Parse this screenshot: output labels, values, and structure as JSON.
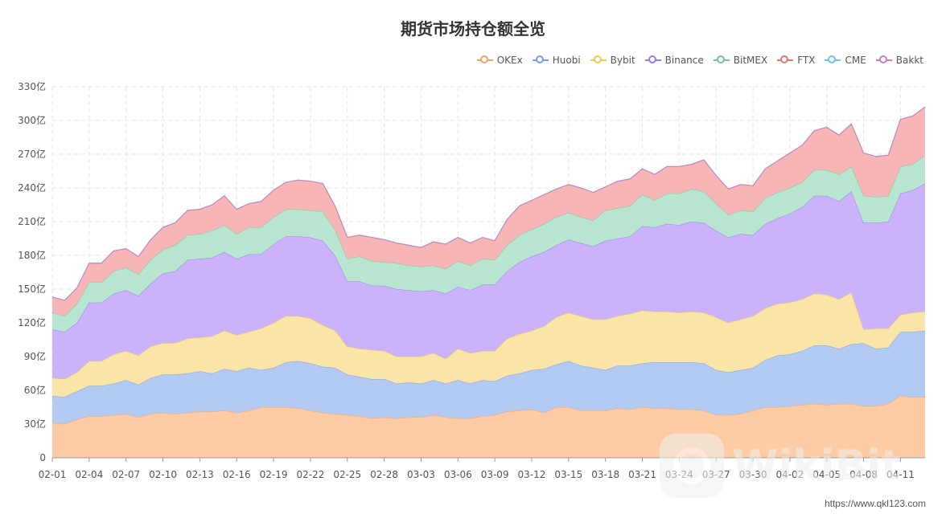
{
  "title": "期货市场持仓额全览",
  "source": "https://www.qkl123.com",
  "watermark": "WikiBit",
  "chart_data": {
    "type": "area",
    "stacked": true,
    "title": "期货市场持仓额全览",
    "y_unit": "亿",
    "ylim": [
      0,
      330
    ],
    "yticks": [
      "0",
      "30亿",
      "60亿",
      "90亿",
      "120亿",
      "150亿",
      "180亿",
      "210亿",
      "240亿",
      "270亿",
      "300亿",
      "330亿"
    ],
    "grid": true,
    "legend_position": "top-right",
    "x_tick_labels": [
      "02-01",
      "02-04",
      "02-07",
      "02-10",
      "02-13",
      "02-16",
      "02-19",
      "02-22",
      "02-25",
      "02-28",
      "03-03",
      "03-06",
      "03-09",
      "03-12",
      "03-15",
      "03-18",
      "03-21",
      "03-24",
      "03-27",
      "03-30",
      "04-02",
      "04-05",
      "04-08",
      "04-11"
    ],
    "series": [
      {
        "name": "OKEx",
        "color": "#f4a261",
        "fill": "#fdcba4",
        "values": [
          31,
          30,
          34,
          37,
          37,
          38,
          39,
          36,
          39,
          40,
          39,
          40,
          41,
          41,
          42,
          40,
          42,
          45,
          45,
          45,
          44,
          42,
          40,
          39,
          38,
          37,
          35,
          36,
          35,
          36,
          36,
          38,
          36,
          35,
          35,
          37,
          38,
          41,
          42,
          43,
          40,
          45,
          45,
          42,
          42,
          42,
          44,
          43,
          45,
          44,
          44,
          43,
          43,
          42,
          38,
          38,
          39,
          42,
          45,
          45,
          46,
          47,
          48,
          47,
          48,
          48,
          46,
          46,
          48,
          55,
          54,
          54
        ]
      },
      {
        "name": "Huobi",
        "color": "#7a9be6",
        "fill": "#b3cbf2",
        "values": [
          24,
          24,
          25,
          27,
          27,
          28,
          30,
          29,
          32,
          34,
          35,
          35,
          36,
          34,
          37,
          37,
          38,
          33,
          35,
          40,
          42,
          42,
          41,
          41,
          36,
          35,
          35,
          34,
          31,
          31,
          30,
          31,
          30,
          34,
          31,
          32,
          30,
          32,
          33,
          35,
          39,
          38,
          41,
          40,
          38,
          36,
          38,
          39,
          39,
          41,
          41,
          42,
          42,
          42,
          40,
          38,
          39,
          38,
          42,
          46,
          46,
          48,
          52,
          53,
          49,
          53,
          56,
          51,
          50,
          57,
          58,
          59
        ]
      },
      {
        "name": "Bybit",
        "color": "#f2c94c",
        "fill": "#f9e5a8",
        "values": [
          16,
          16,
          17,
          22,
          22,
          26,
          26,
          26,
          28,
          28,
          28,
          31,
          30,
          33,
          34,
          32,
          32,
          37,
          40,
          41,
          40,
          40,
          37,
          33,
          25,
          25,
          26,
          25,
          24,
          23,
          24,
          24,
          22,
          28,
          27,
          26,
          27,
          33,
          35,
          35,
          38,
          42,
          43,
          44,
          43,
          45,
          44,
          46,
          47,
          45,
          45,
          44,
          45,
          45,
          47,
          44,
          45,
          46,
          46,
          46,
          46,
          46,
          46,
          45,
          44,
          46,
          12,
          18,
          17,
          15,
          17,
          17
        ]
      },
      {
        "name": "Binance",
        "color": "#9b7be6",
        "fill": "#cbb3fb",
        "values": [
          43,
          42,
          44,
          52,
          52,
          54,
          54,
          53,
          56,
          62,
          64,
          70,
          70,
          70,
          70,
          68,
          69,
          66,
          70,
          71,
          71,
          72,
          75,
          67,
          58,
          60,
          57,
          58,
          60,
          59,
          58,
          56,
          58,
          55,
          56,
          59,
          59,
          60,
          64,
          66,
          66,
          64,
          65,
          65,
          65,
          70,
          69,
          69,
          75,
          75,
          78,
          78,
          80,
          80,
          77,
          76,
          76,
          72,
          75,
          76,
          79,
          82,
          87,
          88,
          87,
          90,
          95,
          94,
          95,
          108,
          109,
          114
        ]
      },
      {
        "name": "BitMEX",
        "color": "#73c69b",
        "fill": "#b9e6d0",
        "values": [
          15,
          14,
          17,
          18,
          18,
          20,
          20,
          19,
          21,
          21,
          23,
          22,
          22,
          24,
          24,
          22,
          24,
          24,
          24,
          24,
          24,
          24,
          26,
          23,
          20,
          22,
          22,
          21,
          23,
          22,
          22,
          22,
          22,
          23,
          22,
          23,
          22,
          23,
          24,
          24,
          25,
          25,
          24,
          23,
          23,
          27,
          27,
          27,
          28,
          24,
          27,
          28,
          29,
          28,
          24,
          20,
          21,
          21,
          23,
          23,
          23,
          22,
          23,
          23,
          24,
          22,
          24,
          23,
          23,
          24,
          23,
          25
        ]
      },
      {
        "name": "FTX",
        "color": "#e57373",
        "fill": "#f7b6b5",
        "values": [
          14,
          14,
          14,
          17,
          17,
          18,
          17,
          16,
          18,
          20,
          20,
          22,
          22,
          23,
          26,
          22,
          21,
          23,
          24,
          24,
          26,
          26,
          25,
          21,
          19,
          19,
          21,
          20,
          18,
          18,
          17,
          21,
          22,
          21,
          20,
          19,
          17,
          23,
          26,
          26,
          26,
          25,
          25,
          26,
          25,
          21,
          24,
          24,
          23,
          23,
          24,
          24,
          22,
          28,
          25,
          23,
          23,
          23,
          26,
          28,
          31,
          33,
          35,
          38,
          35,
          38,
          38,
          36,
          36,
          42,
          43,
          43
        ]
      },
      {
        "name": "CME",
        "color": "#6cc4e4",
        "fill": "#bfe6f3",
        "values": [
          0,
          0,
          0,
          0,
          0,
          0,
          0,
          0,
          0,
          0,
          0,
          0,
          0,
          0,
          0,
          0,
          0,
          0,
          0,
          0,
          0,
          0,
          0,
          0,
          0,
          0,
          0,
          0,
          0,
          0,
          0,
          0,
          0,
          0,
          0,
          0,
          0,
          0,
          0,
          0,
          0,
          0,
          0,
          0,
          0,
          0,
          0,
          0,
          0,
          0,
          0,
          0,
          0,
          0,
          0,
          0,
          0,
          0,
          0,
          0,
          0,
          0,
          0,
          0,
          0,
          0,
          0,
          0,
          0,
          0,
          0,
          0
        ]
      },
      {
        "name": "Bakkt",
        "color": "#c77dc4",
        "fill": "#e6bde4",
        "values": [
          0,
          0,
          0,
          0,
          0,
          0,
          0,
          0,
          0,
          0,
          0,
          0,
          0,
          0,
          0,
          0,
          0,
          0,
          0,
          0,
          0,
          0,
          0,
          0,
          0,
          0,
          0,
          0,
          0,
          0,
          0,
          0,
          0,
          0,
          0,
          0,
          0,
          0,
          0,
          0,
          0,
          0,
          0,
          0,
          0,
          0,
          0,
          0,
          0,
          0,
          0,
          0,
          0,
          0,
          0,
          0,
          0,
          0,
          0,
          0,
          0,
          0,
          0,
          0,
          0,
          0,
          0,
          0,
          0,
          0,
          0,
          0
        ]
      }
    ]
  }
}
